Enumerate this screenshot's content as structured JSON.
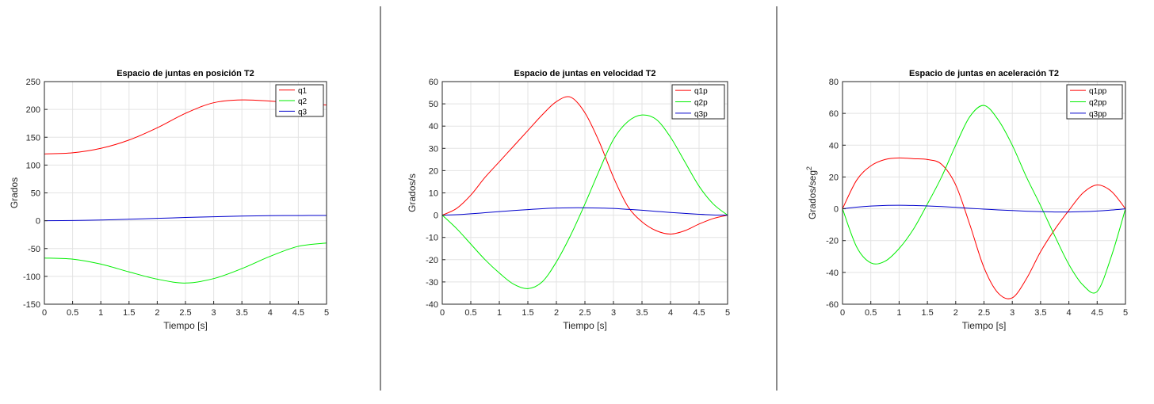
{
  "colors": {
    "red": "#ff0000",
    "green": "#00ee00",
    "blue": "#0000cc"
  },
  "chart_data": [
    {
      "type": "line",
      "title": "Espacio de juntas en posición T2",
      "xlabel": "Tiempo [s]",
      "ylabel": "Grados",
      "ylabel_sup": "",
      "xlim": [
        0,
        5
      ],
      "ylim": [
        -150,
        250
      ],
      "xticks": [
        0,
        0.5,
        1,
        1.5,
        2,
        2.5,
        3,
        3.5,
        4,
        4.5,
        5
      ],
      "yticks": [
        -150,
        -100,
        -50,
        0,
        50,
        100,
        150,
        200,
        250
      ],
      "grid": true,
      "legend_position": "top-right",
      "x": [
        0,
        0.5,
        1,
        1.5,
        2,
        2.5,
        3,
        3.5,
        4,
        4.5,
        5
      ],
      "series": [
        {
          "name": "q1",
          "color": "#ff0000",
          "values": [
            120,
            122,
            130,
            145,
            167,
            193,
            212,
            217,
            215,
            211,
            208
          ]
        },
        {
          "name": "q2",
          "color": "#00ee00",
          "values": [
            -67,
            -69,
            -78,
            -92,
            -105,
            -112,
            -104,
            -86,
            -64,
            -46,
            -40
          ]
        },
        {
          "name": "q3",
          "color": "#0000cc",
          "values": [
            0,
            0.3,
            1.2,
            2.6,
            4.2,
            5.8,
            7.2,
            8.3,
            9,
            9.3,
            9.4
          ]
        }
      ]
    },
    {
      "type": "line",
      "title": "Espacio de juntas en velocidad T2",
      "xlabel": "Tiempo [s]",
      "ylabel": "Grados/s",
      "ylabel_sup": "",
      "xlim": [
        0,
        5
      ],
      "ylim": [
        -40,
        60
      ],
      "xticks": [
        0,
        0.5,
        1,
        1.5,
        2,
        2.5,
        3,
        3.5,
        4,
        4.5,
        5
      ],
      "yticks": [
        -40,
        -30,
        -20,
        -10,
        0,
        10,
        20,
        30,
        40,
        50,
        60
      ],
      "grid": true,
      "legend_position": "top-right",
      "x": [
        0,
        0.25,
        0.5,
        0.75,
        1,
        1.25,
        1.5,
        1.75,
        2,
        2.25,
        2.5,
        2.75,
        3,
        3.25,
        3.5,
        3.75,
        4,
        4.25,
        4.5,
        4.75,
        5
      ],
      "series": [
        {
          "name": "q1p",
          "color": "#ff0000",
          "values": [
            0,
            3,
            9,
            17,
            24,
            31,
            38,
            45,
            51,
            53,
            46,
            33,
            17,
            4,
            -3,
            -7,
            -8.5,
            -7,
            -4,
            -1.5,
            0
          ]
        },
        {
          "name": "q2p",
          "color": "#00ee00",
          "values": [
            0,
            -6,
            -13,
            -20,
            -26,
            -31,
            -33,
            -30,
            -21,
            -9,
            5,
            20,
            34,
            42,
            45,
            43,
            35,
            24,
            13,
            5,
            0
          ]
        },
        {
          "name": "q3p",
          "color": "#0000cc",
          "values": [
            0,
            0.2,
            0.6,
            1.1,
            1.6,
            2.1,
            2.5,
            2.9,
            3.2,
            3.3,
            3.3,
            3.2,
            3,
            2.6,
            2.2,
            1.7,
            1.2,
            0.8,
            0.4,
            0.1,
            0
          ]
        }
      ]
    },
    {
      "type": "line",
      "title": "Espacio de juntas en aceleración T2",
      "xlabel": "Tiempo [s]",
      "ylabel": "Grados/seg",
      "ylabel_sup": "2",
      "xlim": [
        0,
        5
      ],
      "ylim": [
        -60,
        80
      ],
      "xticks": [
        0,
        0.5,
        1,
        1.5,
        2,
        2.5,
        3,
        3.5,
        4,
        4.5,
        5
      ],
      "yticks": [
        -60,
        -40,
        -20,
        0,
        20,
        40,
        60,
        80
      ],
      "grid": true,
      "legend_position": "top-right",
      "x": [
        0,
        0.25,
        0.5,
        0.75,
        1,
        1.25,
        1.5,
        1.75,
        2,
        2.25,
        2.5,
        2.75,
        3,
        3.25,
        3.5,
        3.75,
        4,
        4.25,
        4.5,
        4.75,
        5
      ],
      "series": [
        {
          "name": "q1pp",
          "color": "#ff0000",
          "values": [
            0,
            18,
            27,
            31,
            32,
            31.5,
            31,
            28,
            15,
            -10,
            -37,
            -53,
            -56,
            -44,
            -27,
            -13,
            -1,
            10,
            15,
            11,
            0
          ]
        },
        {
          "name": "q2pp",
          "color": "#00ee00",
          "values": [
            0,
            -24,
            -34,
            -33,
            -25,
            -13,
            3,
            20,
            40,
            58,
            65,
            56,
            40,
            20,
            2,
            -17,
            -35,
            -48,
            -52,
            -30,
            0
          ]
        },
        {
          "name": "q3pp",
          "color": "#0000cc",
          "values": [
            0,
            1,
            1.7,
            2.1,
            2.2,
            2.1,
            1.8,
            1.4,
            0.9,
            0.3,
            -0.2,
            -0.7,
            -1.1,
            -1.5,
            -1.8,
            -2,
            -2,
            -1.8,
            -1.4,
            -0.8,
            0
          ]
        }
      ]
    }
  ]
}
